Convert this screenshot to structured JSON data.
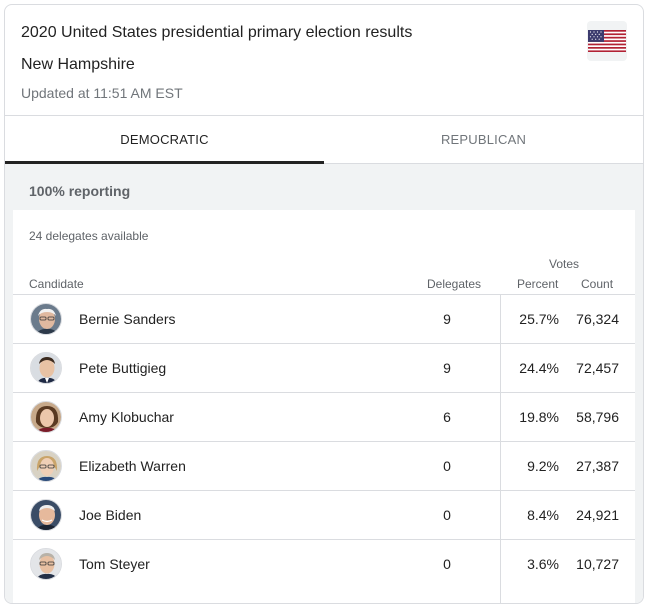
{
  "header": {
    "title": "2020 United States presidential primary election results",
    "state": "New Hampshire",
    "updated": "Updated at 11:51 AM EST",
    "flag_icon": "us-flag-icon"
  },
  "tabs": [
    {
      "label": "DEMOCRATIC",
      "active": true
    },
    {
      "label": "REPUBLICAN",
      "active": false
    }
  ],
  "reporting": "100% reporting",
  "delegates_available": "24 delegates available",
  "table": {
    "headers": {
      "votes": "Votes",
      "candidate": "Candidate",
      "delegates": "Delegates",
      "percent": "Percent",
      "count": "Count"
    },
    "rows": [
      {
        "name": "Bernie Sanders",
        "delegates": "9",
        "percent": "25.7%",
        "count": "76,324",
        "photo": "bernie-sanders-photo"
      },
      {
        "name": "Pete Buttigieg",
        "delegates": "9",
        "percent": "24.4%",
        "count": "72,457",
        "photo": "pete-buttigieg-photo"
      },
      {
        "name": "Amy Klobuchar",
        "delegates": "6",
        "percent": "19.8%",
        "count": "58,796",
        "photo": "amy-klobuchar-photo"
      },
      {
        "name": "Elizabeth Warren",
        "delegates": "0",
        "percent": "9.2%",
        "count": "27,387",
        "photo": "elizabeth-warren-photo"
      },
      {
        "name": "Joe Biden",
        "delegates": "0",
        "percent": "8.4%",
        "count": "24,921",
        "photo": "joe-biden-photo"
      },
      {
        "name": "Tom Steyer",
        "delegates": "0",
        "percent": "3.6%",
        "count": "10,727",
        "photo": "tom-steyer-photo"
      }
    ]
  },
  "colors": {
    "border": "#dadce0",
    "muted_text": "#70757a",
    "panel_bg": "#f1f3f4",
    "active_tab": "#222222"
  }
}
